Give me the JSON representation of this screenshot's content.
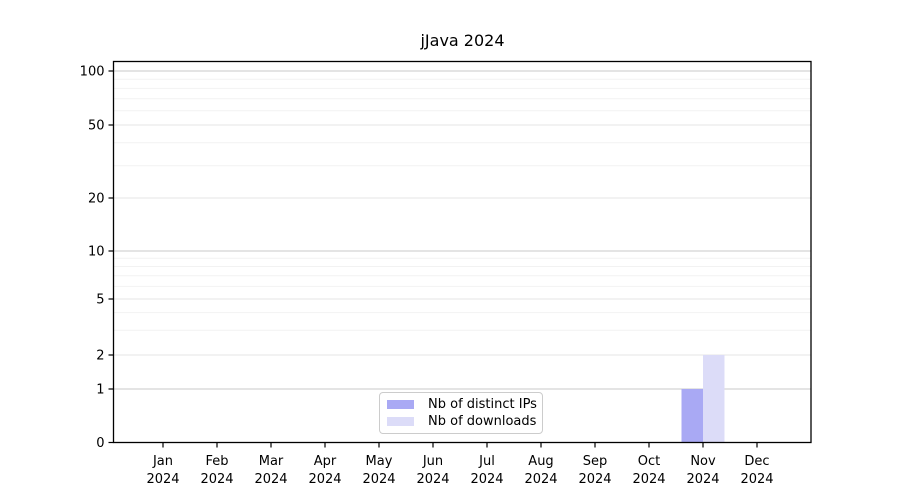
{
  "chart_data": {
    "type": "bar",
    "title": "jJava 2024",
    "categories": [
      "Jan 2024",
      "Feb 2024",
      "Mar 2024",
      "Apr 2024",
      "May 2024",
      "Jun 2024",
      "Jul 2024",
      "Aug 2024",
      "Sep 2024",
      "Oct 2024",
      "Nov 2024",
      "Dec 2024"
    ],
    "x_axis": {
      "months": [
        "Jan",
        "Feb",
        "Mar",
        "Apr",
        "May",
        "Jun",
        "Jul",
        "Aug",
        "Sep",
        "Oct",
        "Nov",
        "Dec"
      ],
      "year": "2024"
    },
    "y_axis": {
      "scale": "log-with-zero",
      "range": [
        0,
        100
      ],
      "tick_values": [
        0,
        1,
        2,
        5,
        10,
        20,
        50,
        100
      ],
      "tick_labels": [
        "0",
        "1",
        "2",
        "5",
        "10",
        "20",
        "50",
        "100"
      ],
      "minor_tick_values": [
        3,
        4,
        6,
        7,
        8,
        9,
        30,
        40,
        60,
        70,
        80,
        90
      ],
      "grid": true
    },
    "series": [
      {
        "name": "Nb of distinct IPs",
        "color": "#a9a9f4",
        "values": [
          0,
          0,
          0,
          0,
          0,
          0,
          0,
          0,
          0,
          0,
          1,
          0
        ]
      },
      {
        "name": "Nb of downloads",
        "color": "#dcdcf8",
        "values": [
          0,
          0,
          0,
          0,
          0,
          0,
          0,
          0,
          0,
          0,
          2,
          0
        ]
      }
    ],
    "legend": {
      "position": "lower center",
      "entries": [
        "Nb of distinct IPs",
        "Nb of downloads"
      ]
    },
    "colors": {
      "background": "#ffffff",
      "axis": "#000000",
      "grid_major": "#c9c9c9",
      "grid_mid": "#e4e4e4",
      "grid_minor": "#f2f2f2",
      "text": "#000000"
    }
  }
}
